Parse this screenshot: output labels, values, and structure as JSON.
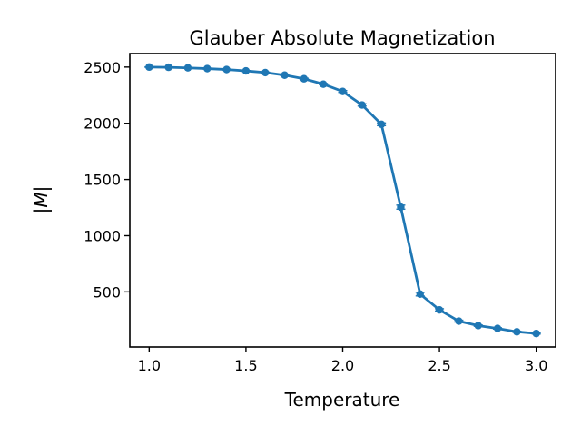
{
  "chart_data": {
    "type": "line",
    "title": "Glauber Absolute Magnetization",
    "xlabel": "Temperature",
    "ylabel": "|M|",
    "xlim": [
      0.9,
      3.1
    ],
    "ylim": [
      10,
      2620
    ],
    "x_ticks": [
      1.0,
      1.5,
      2.0,
      2.5,
      3.0
    ],
    "x_tick_labels": [
      "1.0",
      "1.5",
      "2.0",
      "2.5",
      "3.0"
    ],
    "y_ticks": [
      500,
      1000,
      1500,
      2000,
      2500
    ],
    "y_tick_labels": [
      "500",
      "1000",
      "1500",
      "2000",
      "2500"
    ],
    "grid": false,
    "legend": "none",
    "series": [
      {
        "color": "#1f77b4",
        "marker": "circle",
        "error_bars": true,
        "x": [
          1.0,
          1.1,
          1.2,
          1.3,
          1.4,
          1.5,
          1.6,
          1.7,
          1.8,
          1.9,
          2.0,
          2.1,
          2.2,
          2.3,
          2.4,
          2.5,
          2.6,
          2.7,
          2.8,
          2.9,
          3.0
        ],
        "y": [
          2500,
          2498,
          2493,
          2486,
          2478,
          2466,
          2451,
          2428,
          2396,
          2348,
          2283,
          2163,
          1991,
          1254,
          480,
          340,
          240,
          200,
          175,
          145,
          130
        ],
        "yerr": [
          2,
          2,
          2,
          3,
          3,
          3,
          4,
          4,
          5,
          6,
          8,
          10,
          12,
          18,
          16,
          10,
          8,
          6,
          6,
          5,
          5
        ]
      }
    ]
  }
}
